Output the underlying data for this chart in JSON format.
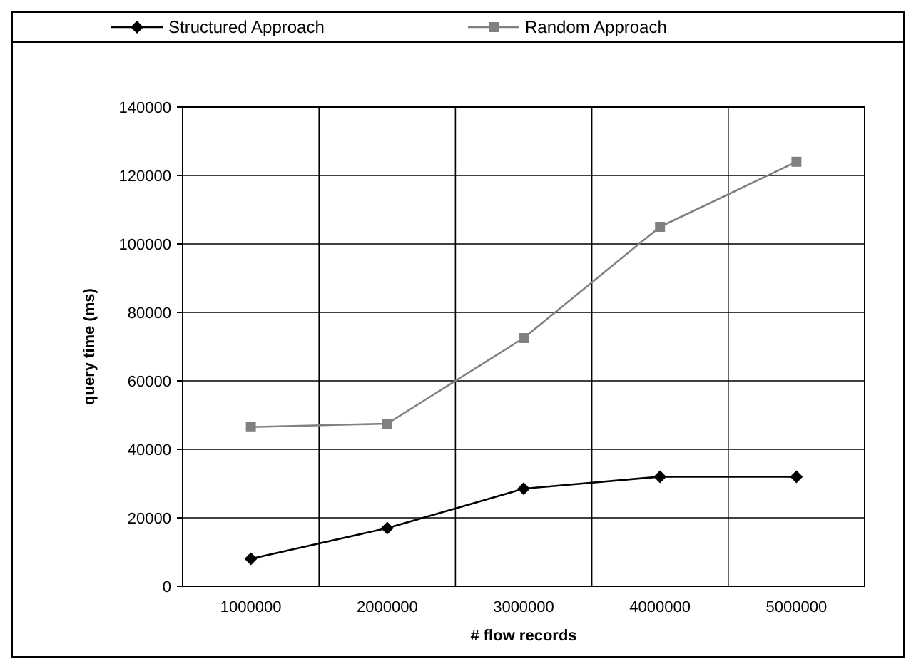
{
  "chart_data": {
    "type": "line",
    "xlabel": "# flow records",
    "ylabel": "query time (ms)",
    "categories": [
      "1000000",
      "2000000",
      "3000000",
      "4000000",
      "5000000"
    ],
    "series": [
      {
        "name": "Structured Approach",
        "color": "#000000",
        "marker": "diamond",
        "values": [
          8000,
          17000,
          28500,
          32000,
          32000
        ]
      },
      {
        "name": "Random Approach",
        "color": "#808080",
        "marker": "square",
        "values": [
          46500,
          47500,
          72500,
          105000,
          124000
        ]
      }
    ],
    "ylim": [
      0,
      140000
    ],
    "yticks": [
      0,
      20000,
      40000,
      60000,
      80000,
      100000,
      120000,
      140000
    ],
    "grid": true,
    "legend": "top"
  }
}
